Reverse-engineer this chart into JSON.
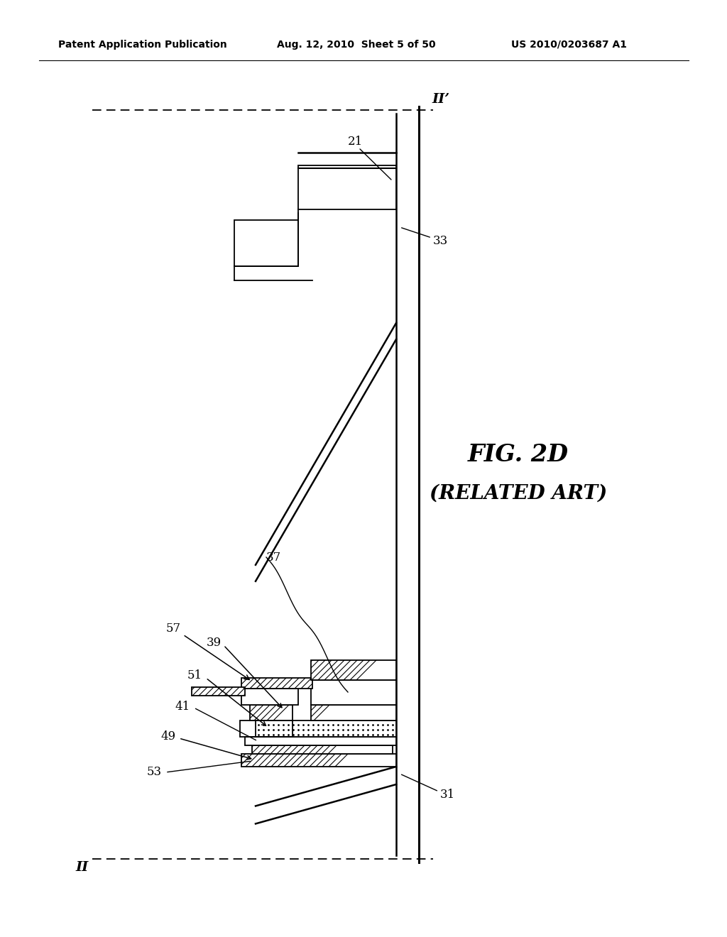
{
  "header_left": "Patent Application Publication",
  "header_mid": "Aug. 12, 2010  Sheet 5 of 50",
  "header_right": "US 2010/0203687 A1",
  "fig_label": "FIG. 2D",
  "fig_sublabel": "(RELATED ART)",
  "label_II": "II",
  "label_IIprime": "II’",
  "label_21": "21",
  "label_31": "31",
  "label_33": "33",
  "label_37": "37",
  "label_39": "39",
  "label_41": "41",
  "label_49": "49",
  "label_51": "51",
  "label_53": "53",
  "label_57": "57",
  "bg_color": "#ffffff"
}
